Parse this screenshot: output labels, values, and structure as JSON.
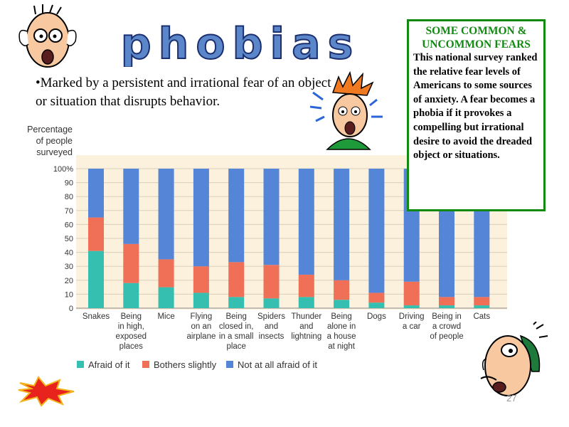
{
  "slide": {
    "title": "phobias",
    "bullet": "•Marked by a persistent and irrational fear of an object or situation that disrupts behavior.",
    "page_number": "27"
  },
  "fears_box": {
    "title": "SOME COMMON & UNCOMMON FEARS",
    "body": "This national survey ranked the relative fear levels of Americans to some sources of anxiety. A fear becomes a phobia if it provokes a compelling but irrational desire to avoid the dreaded object or situations."
  },
  "colors": {
    "afraid": "#35bfb0",
    "bothers": "#ef6f57",
    "not_afraid": "#5585d6",
    "plot_bg": "#fbf1dc",
    "title_fill": "#5b86c9",
    "box_border": "#128a12"
  },
  "chart_data": {
    "type": "bar",
    "stacked": true,
    "ylabel": "Percentage of people surveyed",
    "ylim": [
      0,
      100
    ],
    "y_ticks": [
      "0",
      "10",
      "20",
      "30",
      "40",
      "50",
      "60",
      "70",
      "80",
      "90",
      "100%"
    ],
    "categories": [
      "Snakes",
      "Being in high, exposed places",
      "Mice",
      "Flying on an airplane",
      "Being closed in, in a small place",
      "Spiders and insects",
      "Thunder and lightning",
      "Being alone in a house at night",
      "Dogs",
      "Driving a car",
      "Being in a crowd of people",
      "Cats"
    ],
    "category_lines": [
      [
        "Snakes"
      ],
      [
        "Being",
        "in high,",
        "exposed",
        "places"
      ],
      [
        "Mice"
      ],
      [
        "Flying",
        "on an",
        "airplane"
      ],
      [
        "Being",
        "closed in,",
        "in a small",
        "place"
      ],
      [
        "Spiders",
        "and",
        "insects"
      ],
      [
        "Thunder",
        "and",
        "lightning"
      ],
      [
        "Being",
        "alone in",
        "a house",
        "at night"
      ],
      [
        "Dogs"
      ],
      [
        "Driving",
        "a car"
      ],
      [
        "Being in",
        "a crowd",
        "of people"
      ],
      [
        "Cats"
      ]
    ],
    "series": [
      {
        "name": "Afraid of it",
        "values": [
          41,
          18,
          15,
          11,
          8,
          7,
          8,
          6,
          4,
          2,
          2,
          2
        ]
      },
      {
        "name": "Bothers slightly",
        "values": [
          24,
          28,
          20,
          19,
          25,
          24,
          16,
          14,
          7,
          17,
          6,
          6
        ]
      },
      {
        "name": "Not at all afraid of it",
        "values": [
          35,
          54,
          65,
          70,
          67,
          69,
          76,
          80,
          89,
          81,
          92,
          92
        ]
      }
    ],
    "grid": true,
    "legend": "bottom"
  }
}
